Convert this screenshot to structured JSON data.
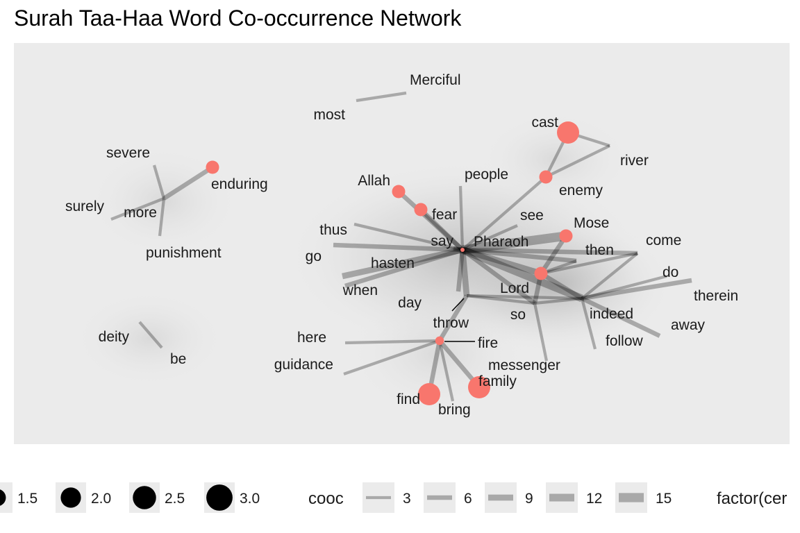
{
  "title": "Surah Taa-Haa Word Co-occurrence Network",
  "colors": {
    "panel_background": "#ebebeb",
    "node_color": "#f8766d",
    "edge_color": "#000000",
    "legend_key_background": "#ebebeb"
  },
  "nodes": [
    {
      "id": "Merciful",
      "label": "Merciful",
      "highlight": false
    },
    {
      "id": "most",
      "label": "most",
      "highlight": false
    },
    {
      "id": "cast",
      "label": "cast",
      "highlight": true,
      "size": 3.0
    },
    {
      "id": "river",
      "label": "river",
      "highlight": false
    },
    {
      "id": "enemy",
      "label": "enemy",
      "highlight": true,
      "size": 2.0
    },
    {
      "id": "severe",
      "label": "severe",
      "highlight": false
    },
    {
      "id": "enduring",
      "label": "enduring",
      "highlight": true,
      "size": 2.0
    },
    {
      "id": "surely",
      "label": "surely",
      "highlight": false
    },
    {
      "id": "more",
      "label": "more",
      "highlight": false
    },
    {
      "id": "punishment",
      "label": "punishment",
      "highlight": false
    },
    {
      "id": "Allah",
      "label": "Allah",
      "highlight": true,
      "size": 2.0
    },
    {
      "id": "fear",
      "label": "fear",
      "highlight": true,
      "size": 2.0
    },
    {
      "id": "people",
      "label": "people",
      "highlight": false
    },
    {
      "id": "see",
      "label": "see",
      "highlight": false
    },
    {
      "id": "Mose",
      "label": "Mose",
      "highlight": true,
      "size": 2.0
    },
    {
      "id": "thus",
      "label": "thus",
      "highlight": false
    },
    {
      "id": "say",
      "label": "say",
      "highlight": false
    },
    {
      "id": "Pharaoh",
      "label": "Pharaoh",
      "highlight": true,
      "size": 1.0
    },
    {
      "id": "come",
      "label": "come",
      "highlight": false
    },
    {
      "id": "then",
      "label": "then",
      "highlight": false
    },
    {
      "id": "go",
      "label": "go",
      "highlight": false
    },
    {
      "id": "hasten",
      "label": "hasten",
      "highlight": false
    },
    {
      "id": "do",
      "label": "do",
      "highlight": false
    },
    {
      "id": "Lord",
      "label": "Lord",
      "highlight": true,
      "size": 2.0
    },
    {
      "id": "when",
      "label": "when",
      "highlight": false
    },
    {
      "id": "therein",
      "label": "therein",
      "highlight": false
    },
    {
      "id": "day",
      "label": "day",
      "highlight": false
    },
    {
      "id": "indeed",
      "label": "indeed",
      "highlight": false
    },
    {
      "id": "so",
      "label": "so",
      "highlight": false
    },
    {
      "id": "away",
      "label": "away",
      "highlight": false
    },
    {
      "id": "throw",
      "label": "throw",
      "highlight": false
    },
    {
      "id": "deity",
      "label": "deity",
      "highlight": false
    },
    {
      "id": "here",
      "label": "here",
      "highlight": false
    },
    {
      "id": "fire",
      "label": "fire",
      "highlight": true,
      "size": 1.5
    },
    {
      "id": "follow",
      "label": "follow",
      "highlight": false
    },
    {
      "id": "be",
      "label": "be",
      "highlight": false
    },
    {
      "id": "guidance",
      "label": "guidance",
      "highlight": false
    },
    {
      "id": "messenger",
      "label": "messenger",
      "highlight": false
    },
    {
      "id": "family",
      "label": "family",
      "highlight": true,
      "size": 3.0
    },
    {
      "id": "find",
      "label": "find",
      "highlight": true,
      "size": 3.0
    },
    {
      "id": "bring",
      "label": "bring",
      "highlight": false
    }
  ],
  "edges": [
    {
      "source": "most",
      "target": "Merciful",
      "cooc": 3
    },
    {
      "source": "cast",
      "target": "river",
      "cooc": 3
    },
    {
      "source": "cast",
      "target": "enemy",
      "cooc": 3
    },
    {
      "source": "enemy",
      "target": "river",
      "cooc": 3
    },
    {
      "source": "enemy",
      "target": "Pharaoh",
      "cooc": 3
    },
    {
      "source": "more",
      "target": "enduring",
      "cooc": 6
    },
    {
      "source": "more",
      "target": "severe",
      "cooc": 3
    },
    {
      "source": "more",
      "target": "surely",
      "cooc": 3
    },
    {
      "source": "more",
      "target": "punishment",
      "cooc": 3
    },
    {
      "source": "deity",
      "target": "be",
      "cooc": 3
    },
    {
      "source": "Allah",
      "target": "Pharaoh",
      "cooc": 6
    },
    {
      "source": "fear",
      "target": "Pharaoh",
      "cooc": 6
    },
    {
      "source": "people",
      "target": "Pharaoh",
      "cooc": 3
    },
    {
      "source": "thus",
      "target": "Pharaoh",
      "cooc": 3
    },
    {
      "source": "say",
      "target": "Pharaoh",
      "cooc": 6
    },
    {
      "source": "go",
      "target": "Pharaoh",
      "cooc": 6
    },
    {
      "source": "hasten",
      "target": "Pharaoh",
      "cooc": 9
    },
    {
      "source": "when",
      "target": "Pharaoh",
      "cooc": 6
    },
    {
      "source": "day",
      "target": "Pharaoh",
      "cooc": 6
    },
    {
      "source": "throw",
      "target": "Pharaoh",
      "cooc": 9
    },
    {
      "source": "see",
      "target": "Pharaoh",
      "cooc": 3
    },
    {
      "source": "Mose",
      "target": "Pharaoh",
      "cooc": 15
    },
    {
      "source": "then",
      "target": "Pharaoh",
      "cooc": 6
    },
    {
      "source": "come",
      "target": "Pharaoh",
      "cooc": 6
    },
    {
      "source": "Lord",
      "target": "Pharaoh",
      "cooc": 9
    },
    {
      "source": "indeed",
      "target": "Pharaoh",
      "cooc": 12
    },
    {
      "source": "so",
      "target": "Pharaoh",
      "cooc": 6
    },
    {
      "source": "Mose",
      "target": "Lord",
      "cooc": 6
    },
    {
      "source": "Lord",
      "target": "so",
      "cooc": 6
    },
    {
      "source": "Lord",
      "target": "then",
      "cooc": 3
    },
    {
      "source": "Lord",
      "target": "come",
      "cooc": 3
    },
    {
      "source": "Lord",
      "target": "indeed",
      "cooc": 6
    },
    {
      "source": "so",
      "target": "indeed",
      "cooc": 3
    },
    {
      "source": "so",
      "target": "messenger",
      "cooc": 3
    },
    {
      "source": "so",
      "target": "throw",
      "cooc": 3
    },
    {
      "source": "indeed",
      "target": "do",
      "cooc": 3
    },
    {
      "source": "indeed",
      "target": "therein",
      "cooc": 6
    },
    {
      "source": "indeed",
      "target": "away",
      "cooc": 6
    },
    {
      "source": "indeed",
      "target": "follow",
      "cooc": 3
    },
    {
      "source": "indeed",
      "target": "come",
      "cooc": 3
    },
    {
      "source": "indeed",
      "target": "throw",
      "cooc": 3
    },
    {
      "source": "throw",
      "target": "fire",
      "cooc": 6
    },
    {
      "source": "fire",
      "target": "here",
      "cooc": 3
    },
    {
      "source": "fire",
      "target": "guidance",
      "cooc": 3
    },
    {
      "source": "fire",
      "target": "find",
      "cooc": 6
    },
    {
      "source": "fire",
      "target": "family",
      "cooc": 6
    },
    {
      "source": "fire",
      "target": "bring",
      "cooc": 3
    }
  ],
  "legend": {
    "size_entries": [
      {
        "value": 1.5,
        "label": "1.5"
      },
      {
        "value": 2.0,
        "label": "2.0"
      },
      {
        "value": 2.5,
        "label": "2.5"
      },
      {
        "value": 3.0,
        "label": "3.0"
      }
    ],
    "cooc_title": "cooc",
    "cooc_entries": [
      {
        "value": 3,
        "label": "3"
      },
      {
        "value": 6,
        "label": "6"
      },
      {
        "value": 9,
        "label": "9"
      },
      {
        "value": 12,
        "label": "12"
      },
      {
        "value": 15,
        "label": "15"
      }
    ],
    "factor_title": "factor(cer"
  }
}
